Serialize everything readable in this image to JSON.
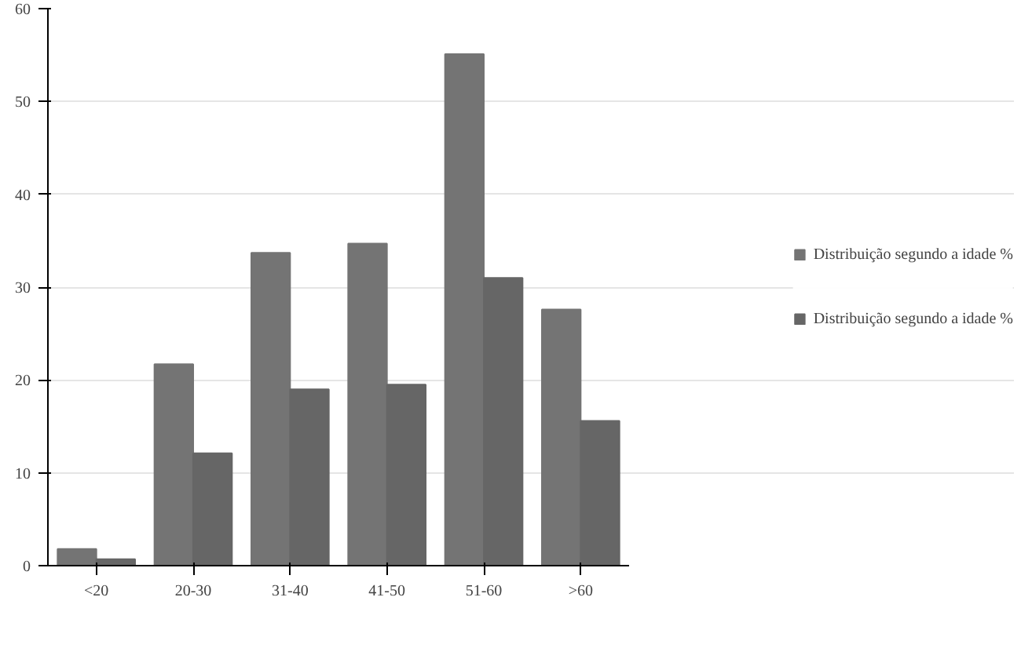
{
  "chart_data": {
    "type": "bar",
    "categories": [
      "<20",
      "20-30",
      "31-40",
      "41-50",
      "51-60",
      ">60"
    ],
    "series": [
      {
        "name": "Distribuição segundo a idade %",
        "color": "#747474",
        "values": [
          1.8,
          21.7,
          33.7,
          34.7,
          55.1,
          27.6
        ]
      },
      {
        "name": "Distribuição segundo a idade %",
        "color": "#666666",
        "values": [
          0.7,
          12.1,
          19.0,
          19.5,
          31.0,
          15.6
        ]
      }
    ],
    "ylim": [
      0,
      60
    ],
    "yticks": [
      0,
      10,
      20,
      30,
      40,
      50,
      60
    ],
    "grid": "y",
    "legend": "right"
  }
}
